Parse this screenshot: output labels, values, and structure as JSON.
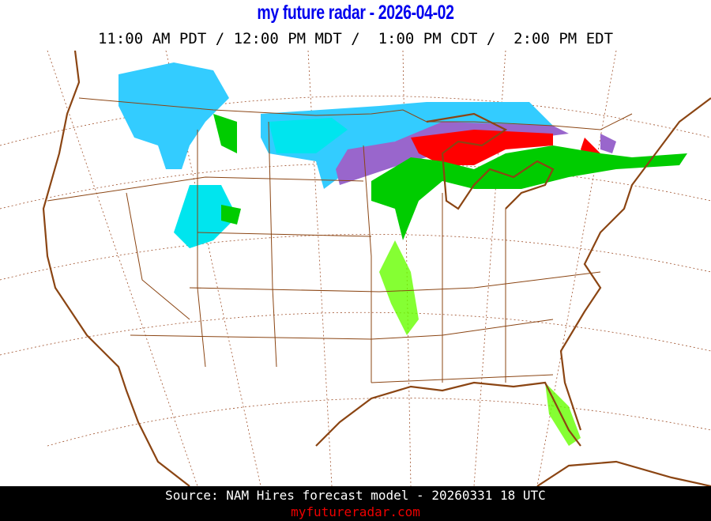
{
  "header": {
    "title": "my future radar - 2026-04-02",
    "times": "11:00 AM PDT / 12:00 PM MDT /  1:00 PM CDT /  2:00 PM EDT"
  },
  "map": {
    "region": "Continental United States",
    "colors": {
      "snow_light": "#33ccff",
      "snow_heavy": "#00e5ee",
      "mix": "#9966cc",
      "freezing": "#ff0000",
      "rain_light": "#66ff00",
      "rain": "#00cc00",
      "borders": "#8b4513"
    }
  },
  "footer": {
    "source": "Source: NAM Hires forecast model - 20260331 18 UTC",
    "site": "myfutureradar.com"
  }
}
